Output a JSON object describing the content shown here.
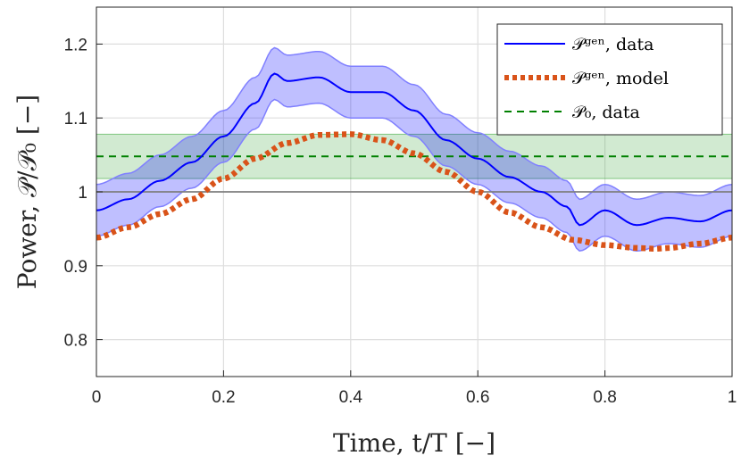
{
  "chart_data": {
    "type": "line",
    "title": "",
    "xlabel": "Time, t/T [−]",
    "ylabel": "Power, 𝒫/𝒫₀ [−]",
    "xlim": [
      0,
      1
    ],
    "ylim": [
      0.75,
      1.25
    ],
    "xticks": [
      0,
      0.2,
      0.4,
      0.6,
      0.8,
      1
    ],
    "xtick_labels": [
      "0",
      "0.2",
      "0.4",
      "0.6",
      "0.8",
      "1"
    ],
    "yticks": [
      0.8,
      0.9,
      1.0,
      1.1,
      1.2
    ],
    "ytick_labels": [
      "0.8",
      "0.9",
      "1",
      "1.1",
      "1.2"
    ],
    "grid": true,
    "legend_position": "top-right",
    "reference_line": {
      "y": 1.0,
      "color": "#7f7f7f"
    },
    "series": [
      {
        "name": "𝒫_gen, data",
        "legend_label": "𝒫ᵍᵉⁿ, data",
        "style": "solid",
        "color": "#0000ff",
        "x": [
          0,
          0.05,
          0.1,
          0.15,
          0.2,
          0.25,
          0.28,
          0.3,
          0.35,
          0.4,
          0.45,
          0.5,
          0.55,
          0.6,
          0.65,
          0.7,
          0.74,
          0.76,
          0.8,
          0.85,
          0.9,
          0.95,
          1.0
        ],
        "values": [
          0.975,
          0.99,
          1.015,
          1.04,
          1.075,
          1.12,
          1.16,
          1.15,
          1.155,
          1.135,
          1.135,
          1.11,
          1.07,
          1.045,
          1.02,
          1.0,
          0.98,
          0.955,
          0.975,
          0.955,
          0.965,
          0.96,
          0.975
        ]
      },
      {
        "name": "𝒫_gen, model",
        "legend_label": "𝒫ᵍᵉⁿ, model",
        "style": "dotted",
        "color": "#d95319",
        "x": [
          0,
          0.05,
          0.1,
          0.15,
          0.2,
          0.25,
          0.3,
          0.35,
          0.4,
          0.45,
          0.5,
          0.55,
          0.6,
          0.65,
          0.7,
          0.75,
          0.8,
          0.85,
          0.88,
          0.9,
          0.95,
          1.0
        ],
        "values": [
          0.938,
          0.952,
          0.97,
          0.99,
          1.018,
          1.045,
          1.066,
          1.077,
          1.078,
          1.07,
          1.052,
          1.027,
          1.0,
          0.972,
          0.952,
          0.935,
          0.928,
          0.924,
          0.923,
          0.924,
          0.93,
          0.938
        ]
      },
      {
        "name": "𝒫₀, data",
        "legend_label": "𝒫₀, data",
        "style": "dashed",
        "color": "#008000",
        "x": [
          0,
          1
        ],
        "values": [
          1.048,
          1.048
        ]
      }
    ],
    "bands": [
      {
        "name": "P_gen data spread",
        "color": "#0000ff",
        "opacity": 0.25,
        "half_width": 0.035
      },
      {
        "name": "P_0 data band",
        "color": "#2ca02c",
        "opacity": 0.22,
        "lower": 1.018,
        "upper": 1.078
      }
    ]
  }
}
